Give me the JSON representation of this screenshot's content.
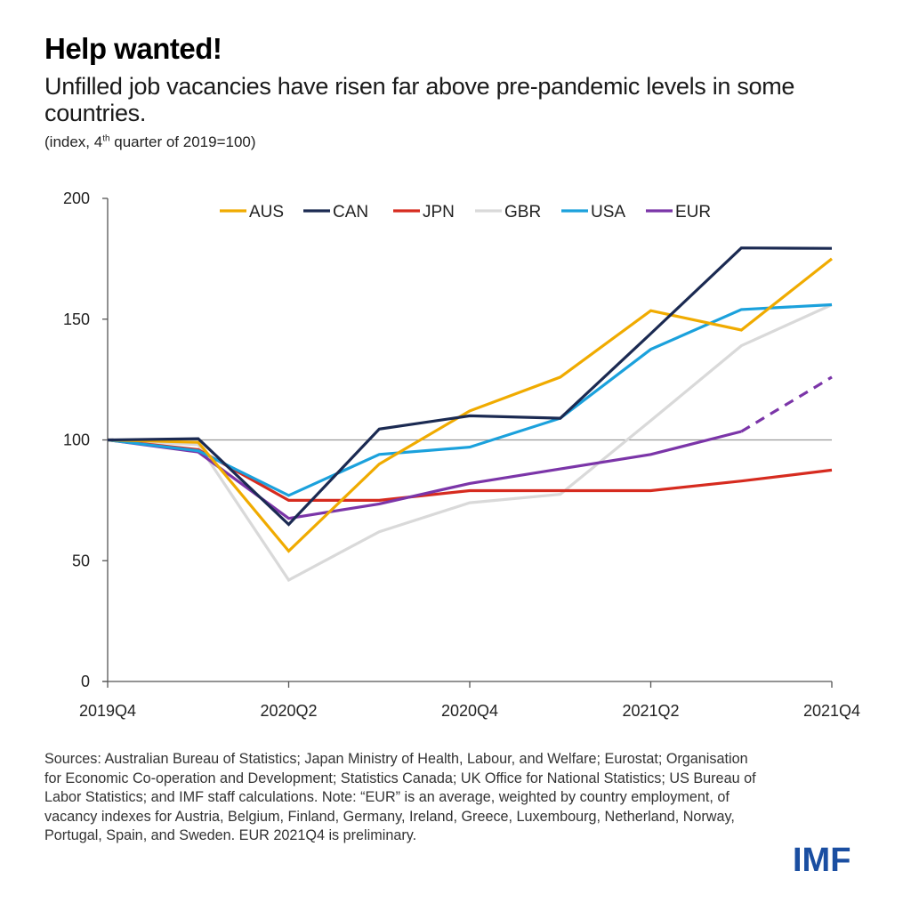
{
  "header": {
    "title": "Help wanted!",
    "subtitle": "Unfilled job vacancies have risen far above pre-pandemic levels in some countries.",
    "units_prefix": "(index, 4",
    "units_sup": "th",
    "units_suffix": " quarter of 2019=100)"
  },
  "chart_data": {
    "type": "line",
    "title": "Help wanted!",
    "subtitle": "Unfilled job vacancies have risen far above pre-pandemic levels in some countries.",
    "xlabel": "",
    "ylabel": "(index, 4th quarter of 2019=100)",
    "x": [
      "2019Q4",
      "2020Q1",
      "2020Q2",
      "2020Q3",
      "2020Q4",
      "2021Q1",
      "2021Q2",
      "2021Q3",
      "2021Q4"
    ],
    "x_tick_labels": [
      "2019Q4",
      "2020Q2",
      "2020Q4",
      "2021Q2",
      "2021Q4"
    ],
    "y_ticks": [
      0,
      50,
      100,
      150,
      200
    ],
    "ylim": [
      0,
      200
    ],
    "reference_line": 100,
    "grid": false,
    "legend_position": "top",
    "series": [
      {
        "name": "AUS",
        "color": "#f0ab00",
        "values": [
          100,
          99,
          54,
          90,
          112,
          126,
          153.5,
          145.5,
          175
        ]
      },
      {
        "name": "CAN",
        "color": "#1b2a52",
        "values": [
          100,
          100.5,
          65,
          104.5,
          110,
          109,
          144,
          179.5,
          179.3
        ]
      },
      {
        "name": "JPN",
        "color": "#d62b1f",
        "values": [
          100,
          96,
          75,
          75,
          79,
          79,
          79,
          83,
          87.5
        ]
      },
      {
        "name": "GBR",
        "color": "#d9d9d9",
        "values": [
          100,
          98,
          42,
          62,
          74,
          77.5,
          108,
          139,
          156
        ]
      },
      {
        "name": "USA",
        "color": "#1ba1dc",
        "values": [
          100,
          95.5,
          77,
          94,
          97,
          109,
          137.5,
          154,
          156
        ]
      },
      {
        "name": "EUR",
        "color": "#7b35a8",
        "values": [
          100,
          95,
          67.5,
          73.5,
          82,
          88,
          94,
          103.5,
          126
        ],
        "preliminary_from": "2021Q3"
      }
    ]
  },
  "footer": {
    "notes": "Sources: Australian Bureau of Statistics; Japan Ministry of Health, Labour, and Welfare; Eurostat; Organisation for Economic Co-operation and Development; Statistics Canada; UK Office for National Statistics; US Bureau of Labor Statistics; and IMF staff calculations. Note: “EUR” is an average, weighted by country employment, of vacancy indexes for Austria, Belgium, Finland, Germany, Ireland, Greece, Luxembourg, Netherland, Norway, Portugal, Spain, and Sweden. EUR 2021Q4 is preliminary.",
    "logo": "IMF"
  }
}
